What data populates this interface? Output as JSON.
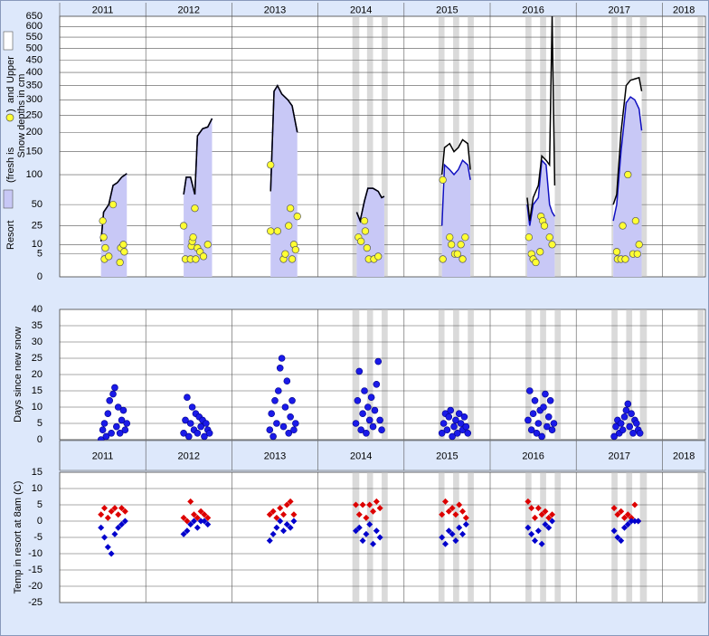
{
  "chart_data": [
    {
      "type": "area",
      "ylabel": [
        "(fresh is",
        ")",
        "and",
        "Snow depths in cm"
      ],
      "xlim": [
        2011,
        2018.5
      ],
      "xticks": [
        2011,
        2012,
        2013,
        2014,
        2015,
        2016,
        2017,
        2018
      ],
      "ylim": [
        0,
        650
      ],
      "yscale": "sqrt",
      "yticks": [
        0,
        5,
        10,
        25,
        50,
        100,
        150,
        200,
        250,
        300,
        350,
        400,
        450,
        500,
        550,
        600,
        650
      ],
      "grid": true,
      "bands": [
        [
          2014.4,
          2014.48
        ],
        [
          2014.57,
          2014.64
        ],
        [
          2014.74,
          2014.81
        ],
        [
          2015.4,
          2015.47
        ],
        [
          2015.57,
          2015.64
        ],
        [
          2015.74,
          2015.81
        ],
        [
          2016.41,
          2016.48
        ],
        [
          2016.58,
          2016.65
        ],
        [
          2016.75,
          2016.82
        ],
        [
          2017.41,
          2017.48
        ],
        [
          2017.58,
          2017.65
        ],
        [
          2017.74,
          2017.82
        ],
        [
          2018.41,
          2018.48
        ]
      ],
      "band_color": "#dadada",
      "x": [
        2011.48,
        2011.51,
        2011.57,
        2011.62,
        2011.67,
        2011.72,
        2011.78,
        null,
        2012.44,
        2012.47,
        2012.52,
        2012.57,
        2012.6,
        2012.66,
        2012.72,
        2012.77,
        null,
        2013.45,
        2013.49,
        2013.53,
        2013.58,
        2013.65,
        2013.7,
        2013.76,
        null,
        2014.45,
        2014.49,
        2014.54,
        2014.58,
        2014.64,
        2014.7,
        2014.74,
        2014.77,
        null,
        2015.44,
        2015.47,
        2015.53,
        2015.58,
        2015.63,
        2015.68,
        2015.74,
        2015.77,
        null,
        2016.43,
        2016.46,
        2016.5,
        2016.56,
        2016.6,
        2016.65,
        2016.69,
        2016.72,
        2016.75,
        null,
        2017.43,
        2017.47,
        2017.52,
        2017.58,
        2017.63,
        2017.68,
        2017.73,
        2017.76
      ],
      "series": [
        {
          "name": "Upper",
          "color": "#000000",
          "fill": "#ffffff",
          "values": [
            12,
            40,
            50,
            80,
            85,
            95,
            102,
            null,
            65,
            95,
            95,
            65,
            190,
            210,
            215,
            240,
            null,
            70,
            330,
            350,
            320,
            300,
            280,
            200,
            null,
            40,
            30,
            55,
            75,
            75,
            70,
            60,
            62,
            null,
            100,
            160,
            170,
            150,
            160,
            180,
            170,
            110,
            null,
            60,
            30,
            60,
            80,
            140,
            130,
            120,
            650,
            80,
            null,
            50,
            65,
            200,
            350,
            370,
            375,
            380,
            330
          ]
        },
        {
          "name": "Resort",
          "color": "#1010c0",
          "fill": "#c8c8f6",
          "values": [
            12,
            40,
            50,
            80,
            85,
            95,
            102,
            null,
            65,
            95,
            95,
            65,
            190,
            210,
            215,
            240,
            null,
            70,
            330,
            350,
            320,
            300,
            280,
            200,
            null,
            40,
            30,
            55,
            75,
            75,
            70,
            60,
            62,
            null,
            25,
            120,
            110,
            100,
            110,
            130,
            120,
            90,
            null,
            50,
            25,
            50,
            60,
            130,
            120,
            50,
            40,
            35,
            null,
            30,
            50,
            150,
            290,
            310,
            300,
            270,
            205
          ]
        },
        {
          "type": "scatter",
          "color": "#ffff33",
          "x": [
            2011.5,
            2011.51,
            2011.53,
            2011.52,
            2011.57,
            2011.62,
            2011.7,
            2011.71,
            2011.74,
            2011.75,
            2012.44,
            2012.46,
            2012.52,
            2012.53,
            2012.54,
            2012.55,
            2012.57,
            2012.58,
            2012.6,
            2012.63,
            2012.67,
            2012.72,
            2013.45,
            2013.45,
            2013.53,
            2013.6,
            2013.62,
            2013.66,
            2013.68,
            2013.7,
            2013.72,
            2013.74,
            2013.76,
            2014.47,
            2014.5,
            2014.54,
            2014.55,
            2014.57,
            2014.59,
            2014.65,
            2014.7,
            2015.45,
            2015.45,
            2015.53,
            2015.55,
            2015.59,
            2015.62,
            2015.66,
            2015.68,
            2015.71,
            2016.45,
            2016.48,
            2016.5,
            2016.53,
            2016.58,
            2016.59,
            2016.61,
            2016.63,
            2016.69,
            2016.72,
            2017.47,
            2017.48,
            2017.52,
            2017.54,
            2017.57,
            2017.6,
            2017.66,
            2017.69,
            2017.71,
            2017.73
          ],
          "values": [
            30,
            15,
            8,
            3,
            4,
            50,
            2,
            8,
            10,
            6,
            25,
            3,
            3,
            9,
            12,
            15,
            45,
            3,
            8,
            6,
            4,
            10,
            120,
            20,
            20,
            3,
            5,
            25,
            45,
            3,
            10,
            7,
            35,
            15,
            12,
            30,
            20,
            8,
            3,
            3,
            4,
            90,
            3,
            15,
            10,
            5,
            5,
            10,
            3,
            15,
            15,
            5,
            3,
            2,
            6,
            35,
            30,
            25,
            15,
            10,
            6,
            3,
            3,
            25,
            3,
            100,
            5,
            30,
            5,
            10
          ]
        }
      ]
    },
    {
      "type": "scatter",
      "ylabel": "Days since new snow",
      "xlim": [
        2011,
        2018.5
      ],
      "ylim": [
        0,
        40
      ],
      "yticks": [
        0,
        5,
        10,
        15,
        20,
        25,
        30,
        35,
        40
      ],
      "grid": true,
      "x": [
        2011.48,
        2011.5,
        2011.52,
        2011.54,
        2011.56,
        2011.58,
        2011.6,
        2011.62,
        2011.64,
        2011.66,
        2011.68,
        2011.7,
        2011.72,
        2011.74,
        2011.76,
        2011.78,
        2012.44,
        2012.46,
        2012.48,
        2012.5,
        2012.52,
        2012.54,
        2012.56,
        2012.58,
        2012.6,
        2012.62,
        2012.64,
        2012.66,
        2012.68,
        2012.7,
        2012.72,
        2012.74,
        2013.44,
        2013.46,
        2013.48,
        2013.5,
        2013.52,
        2013.54,
        2013.56,
        2013.58,
        2013.6,
        2013.62,
        2013.64,
        2013.66,
        2013.68,
        2013.7,
        2013.72,
        2013.74,
        2014.44,
        2014.46,
        2014.48,
        2014.5,
        2014.52,
        2014.54,
        2014.56,
        2014.58,
        2014.6,
        2014.62,
        2014.64,
        2014.66,
        2014.68,
        2014.7,
        2014.72,
        2014.74,
        2015.44,
        2015.46,
        2015.48,
        2015.5,
        2015.52,
        2015.54,
        2015.56,
        2015.58,
        2015.6,
        2015.62,
        2015.64,
        2015.66,
        2015.68,
        2015.7,
        2015.72,
        2015.74,
        2016.44,
        2016.46,
        2016.48,
        2016.5,
        2016.52,
        2016.54,
        2016.56,
        2016.58,
        2016.6,
        2016.62,
        2016.64,
        2016.66,
        2016.68,
        2016.7,
        2016.72,
        2016.74,
        2017.44,
        2017.46,
        2017.48,
        2017.5,
        2017.52,
        2017.54,
        2017.56,
        2017.58,
        2017.6,
        2017.62,
        2017.64,
        2017.66,
        2017.68,
        2017.7,
        2017.72,
        2017.74
      ],
      "series": [
        {
          "color": "#1a1ae8",
          "values": [
            0,
            3,
            5,
            1,
            8,
            12,
            2,
            14,
            16,
            4,
            10,
            2,
            6,
            9,
            3,
            5,
            2,
            6,
            13,
            1,
            5,
            10,
            3,
            8,
            2,
            7,
            4,
            6,
            1,
            5,
            3,
            2,
            3,
            8,
            1,
            12,
            5,
            15,
            22,
            25,
            4,
            10,
            18,
            2,
            7,
            12,
            3,
            5,
            5,
            12,
            21,
            3,
            8,
            15,
            2,
            10,
            6,
            13,
            4,
            9,
            17,
            24,
            6,
            3,
            2,
            5,
            8,
            3,
            7,
            9,
            1,
            4,
            6,
            2,
            8,
            5,
            3,
            7,
            4,
            2,
            6,
            15,
            3,
            8,
            12,
            2,
            5,
            9,
            1,
            10,
            14,
            4,
            7,
            12,
            3,
            5,
            1,
            4,
            6,
            2,
            5,
            3,
            7,
            9,
            11,
            4,
            8,
            2,
            6,
            5,
            3,
            2
          ]
        }
      ]
    },
    {
      "type": "diamonds",
      "ylabel": "Temp in resort at 8am (C)",
      "xlim": [
        2011,
        2018.5
      ],
      "xticks": [
        2011,
        2012,
        2013,
        2014,
        2015,
        2016,
        2017,
        2018
      ],
      "ylim": [
        -25,
        15
      ],
      "yticks": [
        15,
        10,
        5,
        0,
        -5,
        -10,
        -15,
        -20,
        -25
      ],
      "grid": true,
      "x": [
        2011.48,
        2011.52,
        2011.56,
        2011.6,
        2011.64,
        2011.68,
        2011.72,
        2011.76,
        2012.44,
        2012.48,
        2012.52,
        2012.56,
        2012.6,
        2012.64,
        2012.68,
        2012.72,
        2013.44,
        2013.48,
        2013.52,
        2013.56,
        2013.6,
        2013.64,
        2013.68,
        2013.72,
        2014.44,
        2014.48,
        2014.52,
        2014.56,
        2014.6,
        2014.64,
        2014.68,
        2014.72,
        2015.44,
        2015.48,
        2015.52,
        2015.56,
        2015.6,
        2015.64,
        2015.68,
        2015.72,
        2016.44,
        2016.48,
        2016.52,
        2016.56,
        2016.6,
        2016.64,
        2016.68,
        2016.72,
        2017.44,
        2017.48,
        2017.52,
        2017.56,
        2017.6,
        2017.64,
        2017.68,
        2017.72
      ],
      "series": [
        {
          "color": "#dd0000",
          "values": [
            2,
            4,
            1,
            3,
            4,
            2,
            4,
            3,
            1,
            0,
            6,
            2,
            1,
            3,
            2,
            1,
            2,
            3,
            1,
            4,
            2,
            5,
            6,
            2,
            5,
            2,
            5,
            1,
            5,
            3,
            6,
            4,
            2,
            6,
            3,
            4,
            2,
            5,
            3,
            1,
            6,
            4,
            1,
            4,
            2,
            3,
            1,
            2,
            4,
            2,
            3,
            1,
            2,
            1,
            5,
            0
          ]
        },
        {
          "color": "#0000cc",
          "values": [
            -2,
            -5,
            -8,
            -10,
            -4,
            -2,
            -1,
            0,
            -4,
            -3,
            -1,
            0,
            -2,
            0,
            0,
            -1,
            -6,
            -4,
            -2,
            0,
            -3,
            -1,
            -2,
            0,
            -3,
            -2,
            -6,
            -4,
            -1,
            -7,
            -3,
            -5,
            -5,
            -7,
            -3,
            -4,
            -6,
            -2,
            -4,
            -1,
            -2,
            -4,
            -6,
            -3,
            -7,
            -1,
            -2,
            0,
            -3,
            -5,
            -6,
            -2,
            -1,
            0,
            0,
            0
          ]
        }
      ]
    }
  ]
}
